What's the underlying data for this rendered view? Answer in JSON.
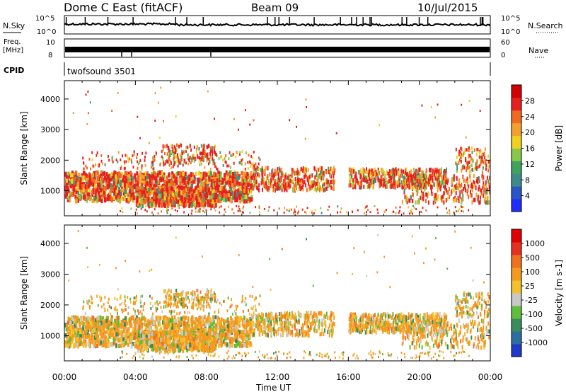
{
  "header": {
    "station": "Dome C East (fitACF)",
    "beam": "Beam 09",
    "date": "10/Jul/2015"
  },
  "status_panels": {
    "nsky_label": "N.Sky",
    "nsearch_label": "N.Search",
    "freq_label_1": "Freq.",
    "freq_label_2": "[MHz]",
    "nave_label": "Nave",
    "cpid_label": "CPID",
    "cpid_value": "twofsound 3501",
    "noise_ticks": [
      "10^5",
      "10^0"
    ],
    "freq_ticks": [
      "10",
      "8"
    ],
    "nave_ticks": [
      "60",
      "0"
    ]
  },
  "chart_data": [
    {
      "type": "heatmap",
      "title": "",
      "xlabel": "Time UT",
      "ylabel": "Slant Range [km]",
      "x_ticks": [
        "00:00",
        "04:00",
        "08:00",
        "12:00",
        "16:00",
        "20:00",
        "00:00"
      ],
      "y_ticks": [
        1000,
        2000,
        3000,
        4000
      ],
      "ylim": [
        180,
        4600
      ],
      "colorbar": {
        "label": "Power [dB]",
        "ticks": [
          4,
          8,
          12,
          16,
          20,
          24,
          28
        ],
        "range": [
          0,
          32
        ],
        "colors": [
          "#1f2bff",
          "#2a55c8",
          "#3f8a8a",
          "#3ea35c",
          "#86c84a",
          "#f0d020",
          "#f3a030",
          "#f06a20",
          "#e62020",
          "#d20000"
        ]
      }
    },
    {
      "type": "heatmap",
      "title": "",
      "xlabel": "Time UT",
      "ylabel": "Slant Range [km]",
      "x_ticks": [
        "00:00",
        "04:00",
        "08:00",
        "12:00",
        "16:00",
        "20:00",
        "00:00"
      ],
      "y_ticks": [
        1000,
        2000,
        3000,
        4000
      ],
      "ylim": [
        180,
        4600
      ],
      "colorbar": {
        "label": "Velocity [m s-1]",
        "ticks": [
          "1000",
          "500",
          "100",
          "25",
          "-25",
          "-100",
          "-500",
          "-1000"
        ],
        "colors": [
          "#1f3ac8",
          "#2d6ea0",
          "#3a8c5a",
          "#5fbf3c",
          "#c8c8c8",
          "#f3c030",
          "#f59a20",
          "#f07020",
          "#e63020",
          "#e00000"
        ]
      }
    }
  ]
}
